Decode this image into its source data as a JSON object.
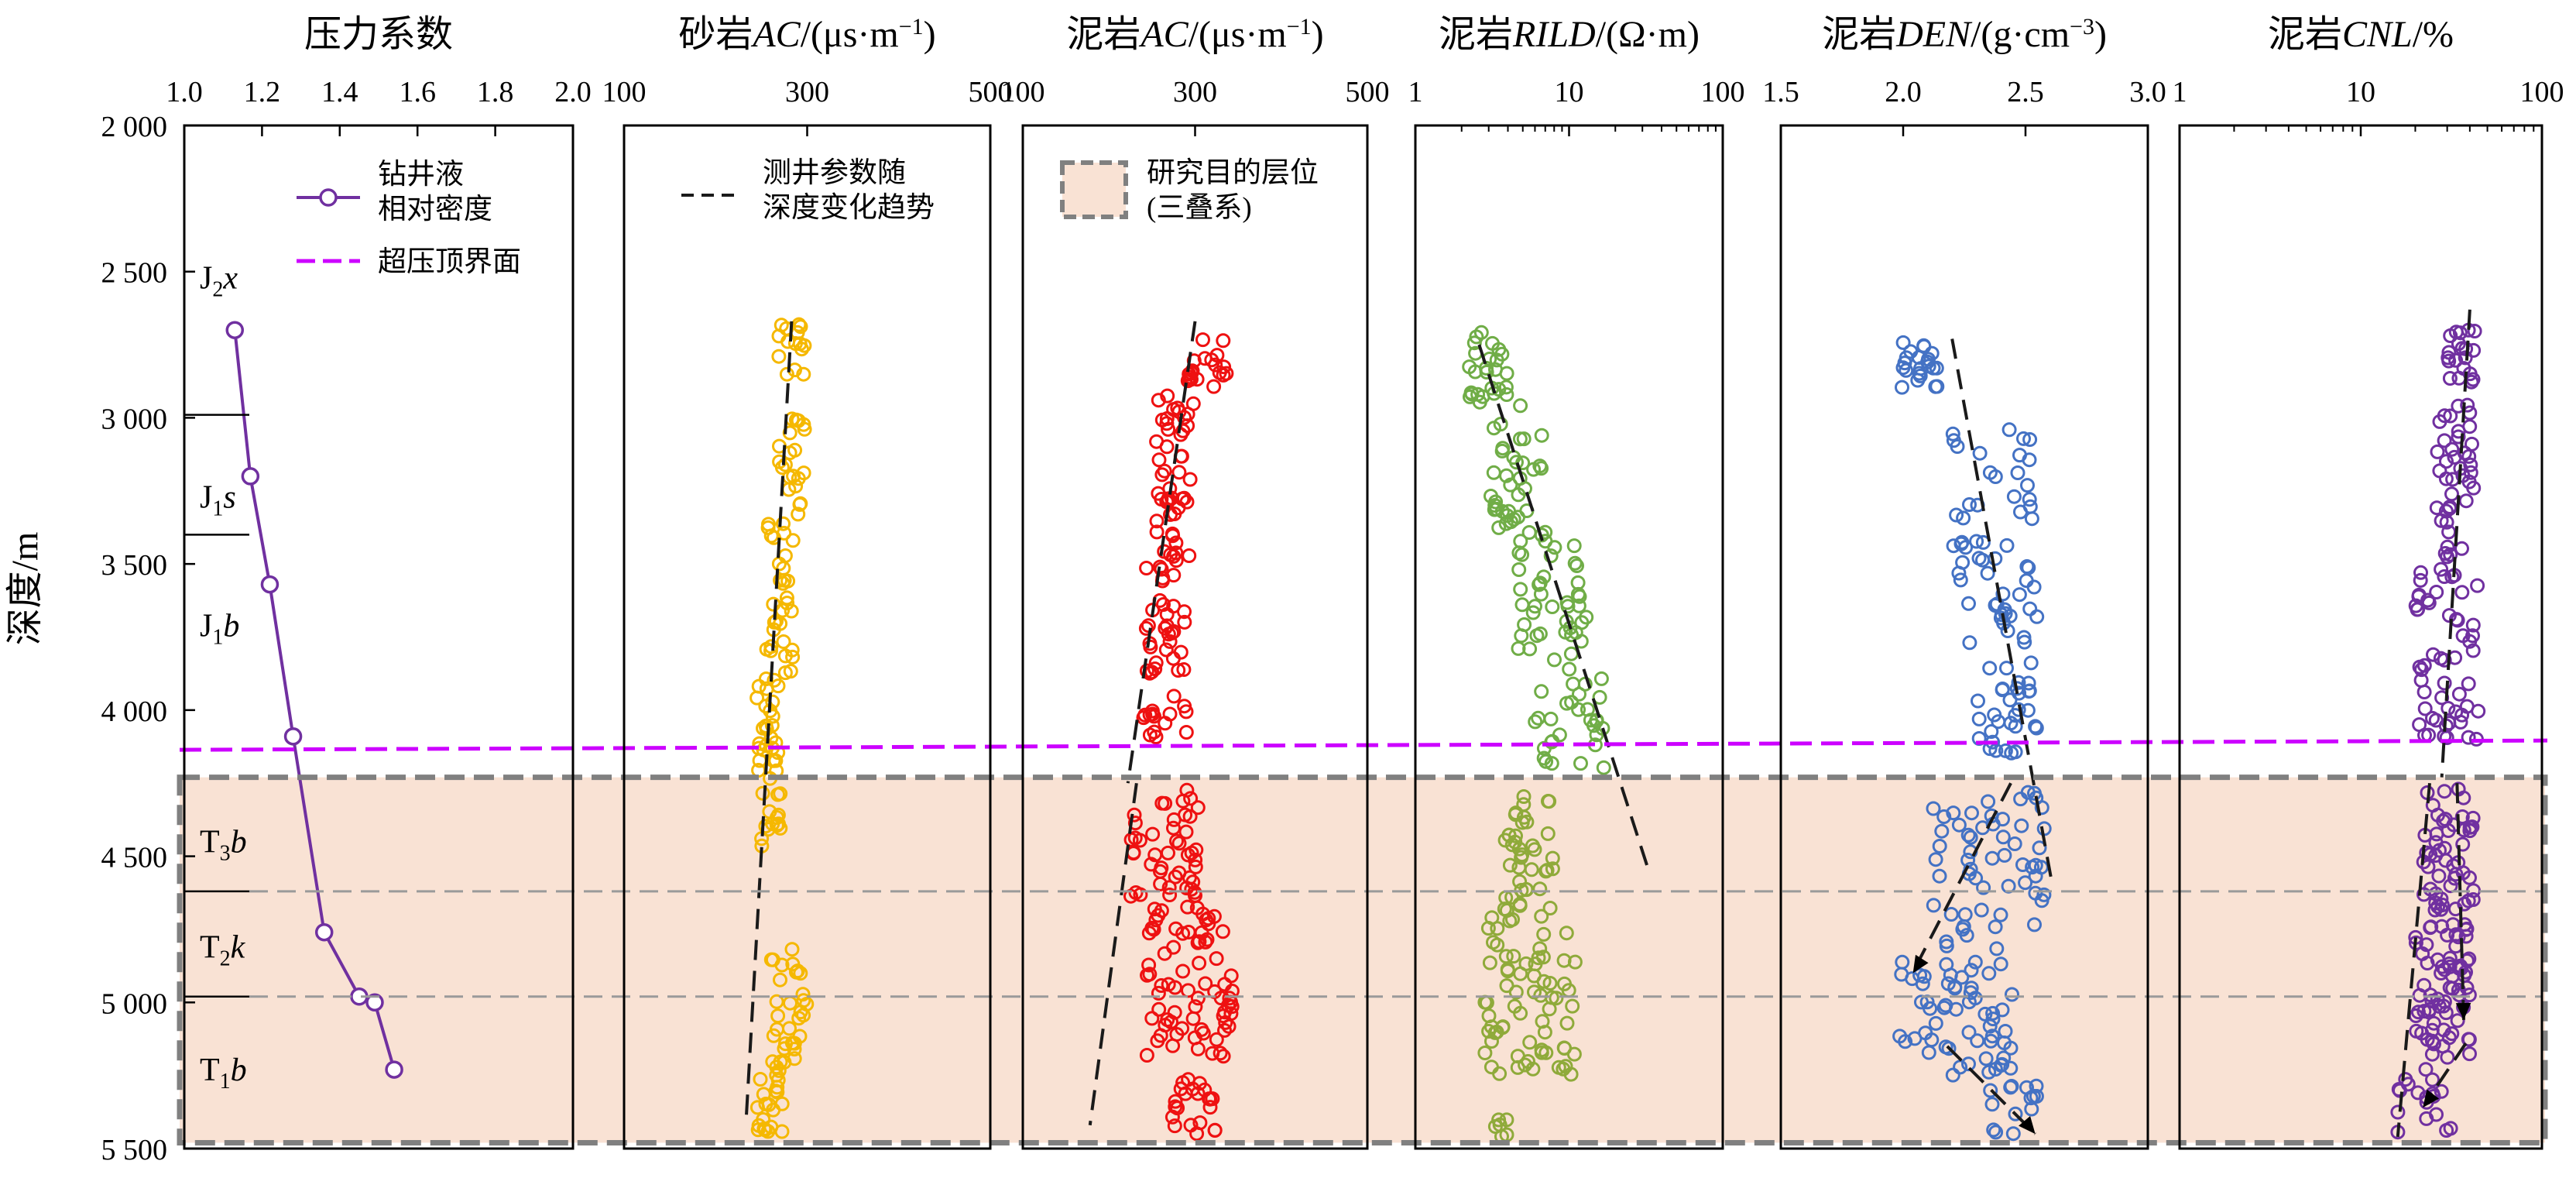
{
  "chart_data": {
    "type": "scatter",
    "y_axis": {
      "label": "深度/m",
      "range": [
        2000,
        5500
      ],
      "ticks": [
        "2 000",
        "2 500",
        "3 000",
        "3 500",
        "4 000",
        "4 500",
        "5 000",
        "5 500"
      ],
      "tick_values": [
        2000,
        2500,
        3000,
        3500,
        4000,
        4500,
        5000,
        5500
      ],
      "inverted": true
    },
    "overpressure_top_depth": 4120,
    "target_interval": {
      "label": "研究目的层位",
      "label2": "(三叠系)",
      "top": 4230,
      "bottom": 5480,
      "color": "#f9e2d4"
    },
    "formation_boundaries": [
      2990,
      3400,
      4620,
      4980
    ],
    "formations": [
      {
        "label": "J2x",
        "base": "J",
        "sub": "2",
        "it": "x",
        "depth": 2520
      },
      {
        "label": "J1s",
        "base": "J",
        "sub": "1",
        "it": "s",
        "depth": 3270
      },
      {
        "label": "J1b",
        "base": "J",
        "sub": "1",
        "it": "b",
        "depth": 3710
      },
      {
        "label": "T3b",
        "base": "T",
        "sub": "3",
        "it": "b",
        "depth": 4450
      },
      {
        "label": "T2k",
        "base": "T",
        "sub": "2",
        "it": "k",
        "depth": 4810
      },
      {
        "label": "T1b",
        "base": "T",
        "sub": "1",
        "it": "b",
        "depth": 5230
      }
    ],
    "legend": {
      "drilling_fluid": [
        "钻井液",
        "相对密度"
      ],
      "overpressure_top": "超压顶界面",
      "trend": [
        "测井参数随",
        "深度变化趋势"
      ],
      "target": [
        "研究目的层位",
        "(三叠系)"
      ]
    },
    "panels": [
      {
        "key": "pressure",
        "title_parts": [
          {
            "t": "压力系数"
          }
        ],
        "scale": "linear",
        "xlim": [
          1.0,
          2.0
        ],
        "ticks": [
          "1.0",
          "1.2",
          "1.4",
          "1.6",
          "1.8",
          "2.0"
        ],
        "tick_values": [
          1.0,
          1.2,
          1.4,
          1.6,
          1.8,
          2.0
        ],
        "color": "#7030a0",
        "series": [
          {
            "name": "钻井液相对密度",
            "points": [
              [
                1.13,
                2700
              ],
              [
                1.17,
                3200
              ],
              [
                1.22,
                3570
              ],
              [
                1.28,
                4090
              ],
              [
                1.36,
                4760
              ],
              [
                1.45,
                4980
              ],
              [
                1.49,
                5000
              ],
              [
                1.54,
                5230
              ]
            ]
          }
        ]
      },
      {
        "key": "sand_ac",
        "title_parts": [
          {
            "t": "砂岩"
          },
          {
            "t": "AC",
            "i": true
          },
          {
            "t": "/(μs·m"
          },
          {
            "t": "−1",
            "sup": true
          },
          {
            "t": ")"
          }
        ],
        "scale": "linear",
        "xlim": [
          100,
          500
        ],
        "ticks": [
          "100",
          "300",
          "500"
        ],
        "tick_values": [
          100,
          300,
          500
        ],
        "color": "#f5b800",
        "trend": [
          [
            [
              283,
              2670
            ],
            [
              233,
              5420
            ]
          ]
        ],
        "clusters": [
          {
            "d": [
              2680,
              3350
            ],
            "x": [
              268,
              300
            ],
            "n": 36
          },
          {
            "d": [
              3350,
              3900
            ],
            "x": [
              255,
              285
            ],
            "n": 34
          },
          {
            "d": [
              3900,
              4250
            ],
            "x": [
              245,
              270
            ],
            "n": 26
          },
          {
            "d": [
              4250,
              4480
            ],
            "x": [
              250,
              278
            ],
            "n": 14
          },
          {
            "d": [
              4800,
              5200
            ],
            "x": [
              260,
              300
            ],
            "n": 28
          },
          {
            "d": [
              5200,
              5450
            ],
            "x": [
              245,
              275
            ],
            "n": 26
          }
        ]
      },
      {
        "key": "mud_ac",
        "title_parts": [
          {
            "t": "泥岩"
          },
          {
            "t": "AC",
            "i": true
          },
          {
            "t": "/(μs·m"
          },
          {
            "t": "−1",
            "sup": true
          },
          {
            "t": ")"
          }
        ],
        "scale": "linear",
        "xlim": [
          100,
          500
        ],
        "ticks": [
          "100",
          "300",
          "500"
        ],
        "tick_values": [
          100,
          300,
          500
        ],
        "color": "#ee1111",
        "trend": [
          [
            [
              300,
              2670
            ],
            [
              222,
              4250
            ]
          ],
          [
            [
              232,
              4250
            ],
            [
              178,
              5420
            ]
          ]
        ],
        "clusters": [
          {
            "d": [
              2700,
              2900
            ],
            "x": [
              290,
              340
            ],
            "n": 20
          },
          {
            "d": [
              2900,
              3500
            ],
            "x": [
              255,
              300
            ],
            "n": 48
          },
          {
            "d": [
              3500,
              4100
            ],
            "x": [
              240,
              290
            ],
            "n": 48
          },
          {
            "d": [
              4270,
              4700
            ],
            "x": [
              225,
              310
            ],
            "n": 50
          },
          {
            "d": [
              4700,
              5200
            ],
            "x": [
              240,
              345
            ],
            "n": 70
          },
          {
            "d": [
              5200,
              5450
            ],
            "x": [
              270,
              325
            ],
            "n": 22
          }
        ]
      },
      {
        "key": "mud_rild",
        "title_parts": [
          {
            "t": "泥岩"
          },
          {
            "t": "RILD",
            "i": true
          },
          {
            "t": "/(Ω·m)"
          }
        ],
        "scale": "log",
        "xlim": [
          1,
          100
        ],
        "ticks": [
          "1",
          "10",
          "100"
        ],
        "tick_values": [
          1,
          10,
          100
        ],
        "color": "#70ad47",
        "trend": [
          [
            [
              2.6,
              2750
            ],
            [
              33,
              4550
            ]
          ]
        ],
        "clusters": [
          {
            "d": [
              2700,
              2950
            ],
            "x": [
              2.2,
              4.2
            ],
            "n": 26
          },
          {
            "d": [
              2950,
              3400
            ],
            "x": [
              3.0,
              7.5
            ],
            "n": 36
          },
          {
            "d": [
              3400,
              3800
            ],
            "x": [
              4.5,
              13
            ],
            "n": 40
          },
          {
            "d": [
              3800,
              4200
            ],
            "x": [
              6,
              18
            ],
            "n": 32
          }
        ],
        "color2": "#8faa3a",
        "clusters2": [
          {
            "d": [
              4280,
              4700
            ],
            "x": [
              3.8,
              8.5
            ],
            "n": 40
          },
          {
            "d": [
              4700,
              5250
            ],
            "x": [
              2.8,
              11
            ],
            "n": 70
          },
          {
            "d": [
              5400,
              5470
            ],
            "x": [
              3.2,
              4.2
            ],
            "n": 6
          }
        ]
      },
      {
        "key": "mud_den",
        "title_parts": [
          {
            "t": "泥岩"
          },
          {
            "t": "DEN",
            "i": true
          },
          {
            "t": "/(g·cm"
          },
          {
            "t": "−3",
            "sup": true
          },
          {
            "t": ")"
          }
        ],
        "scale": "linear",
        "xlim": [
          1.5,
          3.0
        ],
        "ticks": [
          "1.5",
          "2.0",
          "2.5",
          "3.0"
        ],
        "tick_values": [
          1.5,
          2.0,
          2.5,
          3.0
        ],
        "color": "#4472c4",
        "trend": [
          [
            [
              2.2,
              2730
            ],
            [
              2.61,
              4600
            ]
          ],
          [
            [
              2.44,
              4250
            ],
            [
              2.05,
              4880
            ]
          ],
          [
            [
              2.18,
              5150
            ],
            [
              2.54,
              5450
            ]
          ]
        ],
        "arrows": [
          [
            [
              2.1,
              4820
            ],
            [
              2.04,
              4900
            ]
          ],
          [
            [
              2.47,
              5380
            ],
            [
              2.54,
              5450
            ]
          ]
        ],
        "clusters": [
          {
            "d": [
              2700,
              2900
            ],
            "x": [
              1.99,
              2.15
            ],
            "n": 22
          },
          {
            "d": [
              3000,
              3600
            ],
            "x": [
              2.2,
              2.55
            ],
            "n": 40
          },
          {
            "d": [
              3600,
              4150
            ],
            "x": [
              2.25,
              2.55
            ],
            "n": 48
          },
          {
            "d": [
              4280,
              4800
            ],
            "x": [
              2.12,
              2.58
            ],
            "n": 55
          },
          {
            "d": [
              4800,
              5250
            ],
            "x": [
              1.97,
              2.45
            ],
            "n": 60
          },
          {
            "d": [
              5250,
              5450
            ],
            "x": [
              2.35,
              2.55
            ],
            "n": 14
          }
        ]
      },
      {
        "key": "mud_cnl",
        "title_parts": [
          {
            "t": "泥岩"
          },
          {
            "t": "CNL",
            "i": true
          },
          {
            "t": "/%"
          }
        ],
        "scale": "log",
        "xlim": [
          1,
          100
        ],
        "ticks": [
          "1",
          "10",
          "100"
        ],
        "tick_values": [
          1,
          10,
          100
        ],
        "color": "#7030a0",
        "trend": [
          [
            [
              40,
              2630
            ],
            [
              28,
              4230
            ]
          ],
          [
            [
              24,
              4250
            ],
            [
              16,
              5460
            ]
          ],
          [
            [
              34,
              4250
            ],
            [
              37,
              5060
            ]
          ],
          [
            [
              38,
              5140
            ],
            [
              23,
              5340
            ]
          ]
        ],
        "arrows": [
          [
            [
              36.8,
              4980
            ],
            [
              37,
              5060
            ]
          ],
          [
            [
              26,
              5300
            ],
            [
              22,
              5360
            ]
          ]
        ],
        "clusters": [
          {
            "d": [
              2700,
              2900
            ],
            "x": [
              30,
              45
            ],
            "n": 20
          },
          {
            "d": [
              2950,
              3500
            ],
            "x": [
              26,
              42
            ],
            "n": 40
          },
          {
            "d": [
              3500,
              4100
            ],
            "x": [
              20,
              45
            ],
            "n": 55
          },
          {
            "d": [
              4270,
              4700
            ],
            "x": [
              22,
              42
            ],
            "n": 50
          },
          {
            "d": [
              4700,
              5200
            ],
            "x": [
              20,
              40
            ],
            "n": 70
          },
          {
            "d": [
              5200,
              5450
            ],
            "x": [
              16,
              32
            ],
            "n": 18
          }
        ]
      }
    ]
  }
}
